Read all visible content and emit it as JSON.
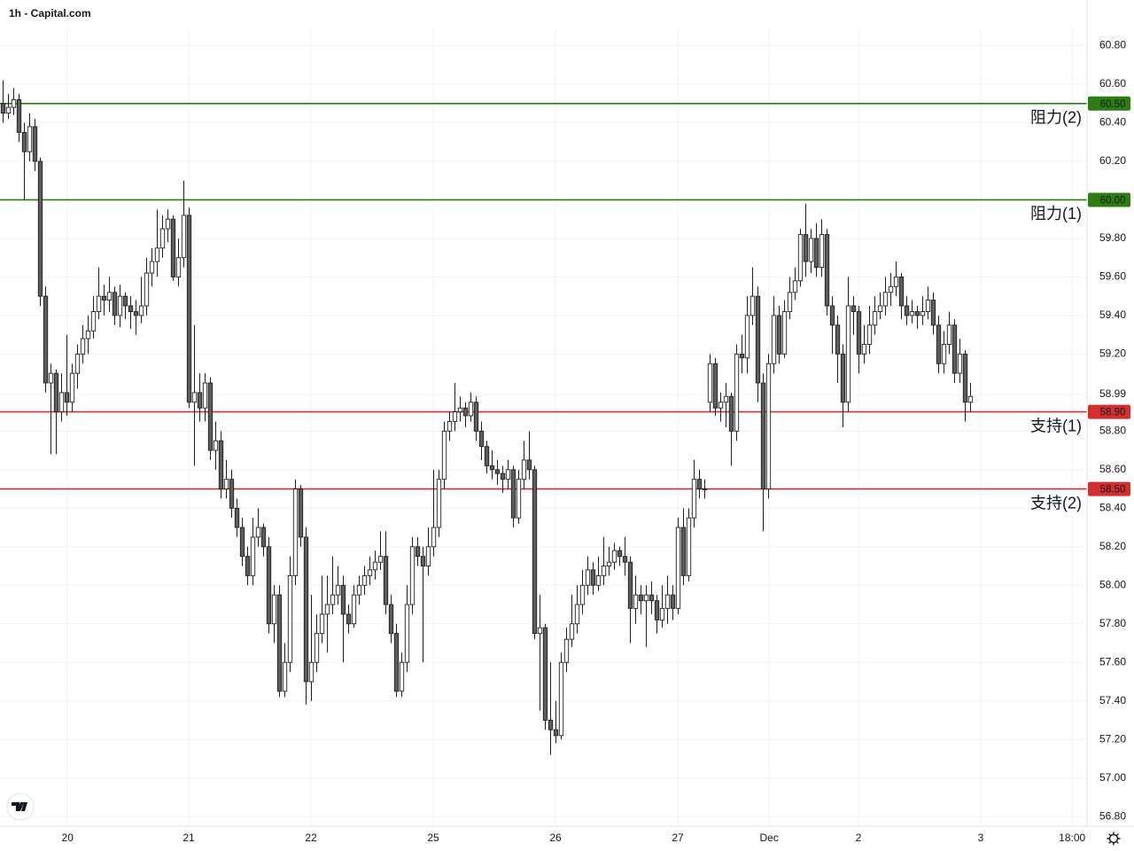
{
  "chart_data": {
    "type": "candlestick",
    "title": "1h - Capital.com",
    "up_color": "#ffffff",
    "down_color": "#5d5d5d",
    "wick_color": "#1e1e1e",
    "grid": true,
    "ylim": [
      56.75,
      60.89
    ],
    "yticks": [
      {
        "value": 60.8,
        "label": "60.80"
      },
      {
        "value": 60.6,
        "label": "60.60"
      },
      {
        "value": 60.4,
        "label": "60.40"
      },
      {
        "value": 60.2,
        "label": "60.20"
      },
      {
        "value": 59.8,
        "label": "59.80"
      },
      {
        "value": 59.6,
        "label": "59.60"
      },
      {
        "value": 59.4,
        "label": "59.40"
      },
      {
        "value": 59.2,
        "label": "59.20"
      },
      58.99,
      {
        "value": 58.8,
        "label": "58.80"
      },
      {
        "value": 58.6,
        "label": "58.60"
      },
      {
        "value": 58.4,
        "label": "58.40"
      },
      {
        "value": 58.2,
        "label": "58.20"
      },
      {
        "value": 58.0,
        "label": "58.00"
      },
      {
        "value": 57.8,
        "label": "57.80"
      },
      {
        "value": 57.6,
        "label": "57.60"
      },
      {
        "value": 57.4,
        "label": "57.40"
      },
      {
        "value": 57.2,
        "label": "57.20"
      },
      {
        "value": 57.0,
        "label": "57.00"
      },
      {
        "value": 56.8,
        "label": "56.80"
      }
    ],
    "xlim": [
      -0.5,
      204
    ],
    "xticks": [
      {
        "value": 12.2,
        "label": "20"
      },
      {
        "value": 35,
        "label": "21"
      },
      {
        "value": 58,
        "label": "22"
      },
      {
        "value": 81,
        "label": "25"
      },
      {
        "value": 104,
        "label": "26"
      },
      {
        "value": 127,
        "label": "27"
      },
      {
        "value": 144.2,
        "label": "Dec"
      },
      {
        "value": 161,
        "label": "2"
      },
      {
        "value": 184,
        "label": "3"
      },
      {
        "value": 201.2,
        "label": "18:00"
      }
    ],
    "levels": [
      {
        "value": 60.5,
        "value_label": "60.50",
        "label": "阻力(2)",
        "color": "#2e7d12"
      },
      {
        "value": 60.0,
        "value_label": "60.00",
        "label": "阻力(1)",
        "color": "#2e7d12"
      },
      {
        "value": 58.9,
        "value_label": "58.90",
        "label": "支持(1)",
        "color": "#d32f2f"
      },
      {
        "value": 58.5,
        "value_label": "58.50",
        "label": "支持(2)",
        "color": "#d32f2f"
      }
    ],
    "ohlc": [
      [
        60.5,
        60.62,
        60.4,
        60.45
      ],
      [
        60.45,
        60.55,
        60.42,
        60.48
      ],
      [
        60.48,
        60.58,
        60.44,
        60.52
      ],
      [
        60.52,
        60.55,
        60.3,
        60.35
      ],
      [
        60.35,
        60.4,
        60.0,
        60.25
      ],
      [
        60.25,
        60.45,
        60.2,
        60.38
      ],
      [
        60.38,
        60.42,
        60.15,
        60.2
      ],
      [
        60.2,
        60.22,
        59.45,
        59.5
      ],
      [
        59.5,
        59.55,
        59.0,
        59.05
      ],
      [
        59.05,
        59.15,
        58.68,
        59.1
      ],
      [
        59.1,
        59.12,
        58.68,
        58.9
      ],
      [
        58.9,
        59.1,
        58.85,
        59.0
      ],
      [
        59.0,
        59.3,
        58.88,
        58.95
      ],
      [
        58.95,
        59.15,
        58.9,
        59.1
      ],
      [
        59.1,
        59.25,
        59.02,
        59.2
      ],
      [
        59.2,
        59.35,
        59.15,
        59.28
      ],
      [
        59.28,
        59.4,
        59.2,
        59.32
      ],
      [
        59.32,
        59.5,
        59.28,
        59.42
      ],
      [
        59.42,
        59.65,
        59.38,
        59.5
      ],
      [
        59.5,
        59.56,
        59.4,
        59.48
      ],
      [
        59.48,
        59.6,
        59.42,
        59.52
      ],
      [
        59.52,
        59.55,
        59.35,
        59.4
      ],
      [
        59.4,
        59.56,
        59.34,
        59.5
      ],
      [
        59.5,
        59.52,
        59.38,
        59.45
      ],
      [
        59.45,
        59.5,
        59.33,
        59.42
      ],
      [
        59.42,
        59.48,
        59.3,
        59.4
      ],
      [
        59.4,
        59.6,
        59.36,
        59.45
      ],
      [
        59.45,
        59.7,
        59.4,
        59.62
      ],
      [
        59.62,
        59.75,
        59.55,
        59.68
      ],
      [
        59.68,
        59.95,
        59.6,
        59.75
      ],
      [
        59.75,
        59.92,
        59.7,
        59.85
      ],
      [
        59.85,
        59.95,
        59.78,
        59.9
      ],
      [
        59.9,
        59.92,
        59.58,
        59.6
      ],
      [
        59.6,
        59.8,
        59.55,
        59.7
      ],
      [
        59.7,
        60.1,
        59.65,
        59.92
      ],
      [
        59.92,
        59.96,
        58.92,
        58.95
      ],
      [
        58.95,
        59.35,
        58.62,
        59.0
      ],
      [
        59.0,
        59.1,
        58.85,
        58.92
      ],
      [
        58.92,
        59.1,
        58.85,
        59.05
      ],
      [
        59.05,
        59.08,
        58.65,
        58.7
      ],
      [
        58.7,
        58.85,
        58.6,
        58.75
      ],
      [
        58.75,
        58.8,
        58.45,
        58.5
      ],
      [
        58.5,
        58.65,
        58.45,
        58.55
      ],
      [
        58.55,
        58.6,
        58.35,
        58.4
      ],
      [
        58.4,
        58.45,
        58.25,
        58.3
      ],
      [
        58.3,
        58.35,
        58.1,
        58.15
      ],
      [
        58.15,
        58.2,
        58.0,
        58.05
      ],
      [
        58.05,
        58.35,
        58.0,
        58.25
      ],
      [
        58.25,
        58.4,
        58.2,
        58.3
      ],
      [
        58.3,
        58.32,
        58.15,
        58.2
      ],
      [
        58.2,
        58.25,
        57.75,
        57.8
      ],
      [
        57.8,
        58.0,
        57.7,
        57.95
      ],
      [
        57.95,
        58.0,
        57.42,
        57.45
      ],
      [
        57.45,
        57.7,
        57.42,
        57.6
      ],
      [
        57.6,
        58.15,
        57.55,
        58.05
      ],
      [
        58.05,
        58.55,
        58.0,
        58.5
      ],
      [
        58.5,
        58.52,
        58.2,
        58.25
      ],
      [
        58.25,
        58.3,
        57.38,
        57.5
      ],
      [
        57.5,
        57.95,
        57.4,
        57.6
      ],
      [
        57.6,
        57.85,
        57.55,
        57.75
      ],
      [
        57.75,
        58.05,
        57.7,
        57.85
      ],
      [
        57.85,
        58.05,
        57.65,
        57.9
      ],
      [
        57.9,
        58.15,
        57.85,
        57.95
      ],
      [
        57.95,
        58.1,
        57.9,
        58.0
      ],
      [
        58.0,
        58.05,
        57.6,
        57.85
      ],
      [
        57.85,
        57.9,
        57.75,
        57.8
      ],
      [
        57.8,
        58.0,
        57.78,
        57.95
      ],
      [
        57.95,
        58.05,
        57.9,
        58.0
      ],
      [
        58.0,
        58.1,
        57.95,
        58.05
      ],
      [
        58.05,
        58.15,
        58.0,
        58.08
      ],
      [
        58.08,
        58.18,
        58.03,
        58.12
      ],
      [
        58.12,
        58.28,
        58.08,
        58.15
      ],
      [
        58.15,
        58.28,
        57.85,
        57.9
      ],
      [
        57.9,
        57.95,
        57.7,
        57.75
      ],
      [
        57.75,
        57.8,
        57.42,
        57.45
      ],
      [
        57.45,
        57.65,
        57.42,
        57.6
      ],
      [
        57.6,
        58.0,
        57.55,
        57.9
      ],
      [
        57.9,
        58.25,
        57.85,
        58.2
      ],
      [
        58.2,
        58.25,
        58.1,
        58.15
      ],
      [
        58.15,
        58.2,
        57.6,
        58.1
      ],
      [
        58.1,
        58.3,
        58.05,
        58.2
      ],
      [
        58.2,
        58.6,
        58.15,
        58.3
      ],
      [
        58.3,
        58.6,
        58.25,
        58.55
      ],
      [
        58.55,
        58.85,
        58.5,
        58.8
      ],
      [
        58.8,
        58.9,
        58.75,
        58.85
      ],
      [
        58.85,
        59.05,
        58.8,
        58.9
      ],
      [
        58.9,
        58.98,
        58.85,
        58.92
      ],
      [
        58.92,
        58.95,
        58.82,
        58.88
      ],
      [
        58.88,
        59.0,
        58.85,
        58.95
      ],
      [
        58.95,
        58.98,
        58.75,
        58.8
      ],
      [
        58.8,
        58.85,
        58.65,
        58.72
      ],
      [
        58.72,
        58.75,
        58.58,
        58.62
      ],
      [
        58.62,
        58.7,
        58.55,
        58.6
      ],
      [
        58.6,
        58.65,
        58.52,
        58.58
      ],
      [
        58.58,
        58.62,
        58.48,
        58.55
      ],
      [
        58.55,
        58.65,
        58.5,
        58.6
      ],
      [
        58.6,
        58.62,
        58.3,
        58.35
      ],
      [
        58.35,
        58.6,
        58.32,
        58.55
      ],
      [
        58.55,
        58.75,
        58.5,
        58.65
      ],
      [
        58.65,
        58.8,
        58.55,
        58.6
      ],
      [
        58.6,
        58.62,
        57.72,
        57.75
      ],
      [
        57.75,
        57.95,
        57.35,
        57.78
      ],
      [
        57.78,
        57.8,
        57.25,
        57.3
      ],
      [
        57.3,
        57.6,
        57.12,
        57.25
      ],
      [
        57.25,
        57.4,
        57.18,
        57.22
      ],
      [
        57.22,
        57.65,
        57.2,
        57.6
      ],
      [
        57.6,
        57.78,
        57.55,
        57.72
      ],
      [
        57.72,
        57.95,
        57.68,
        57.8
      ],
      [
        57.8,
        58.0,
        57.75,
        57.9
      ],
      [
        57.9,
        58.08,
        57.85,
        58.0
      ],
      [
        58.0,
        58.15,
        57.95,
        58.08
      ],
      [
        58.08,
        58.12,
        57.95,
        58.0
      ],
      [
        58.0,
        58.15,
        57.97,
        58.05
      ],
      [
        58.05,
        58.25,
        58.0,
        58.1
      ],
      [
        58.1,
        58.2,
        58.05,
        58.12
      ],
      [
        58.12,
        58.22,
        58.08,
        58.18
      ],
      [
        58.18,
        58.2,
        58.1,
        58.15
      ],
      [
        58.15,
        58.25,
        58.05,
        58.12
      ],
      [
        58.12,
        58.15,
        57.7,
        57.88
      ],
      [
        57.88,
        58.05,
        57.8,
        57.95
      ],
      [
        57.95,
        58.0,
        57.85,
        57.92
      ],
      [
        57.92,
        58.0,
        57.68,
        57.95
      ],
      [
        57.95,
        58.02,
        57.85,
        57.92
      ],
      [
        57.92,
        57.95,
        57.75,
        57.82
      ],
      [
        57.82,
        58.0,
        57.78,
        57.88
      ],
      [
        57.88,
        58.05,
        57.8,
        57.95
      ],
      [
        57.95,
        58.0,
        57.82,
        57.88
      ],
      [
        57.88,
        58.35,
        57.85,
        58.3
      ],
      [
        58.3,
        58.4,
        58.0,
        58.05
      ],
      [
        58.05,
        58.4,
        58.02,
        58.35
      ],
      [
        58.35,
        58.65,
        58.3,
        58.55
      ],
      [
        58.55,
        58.6,
        58.45,
        58.5
      ],
      [
        58.5,
        58.55,
        58.45,
        58.5
      ],
      [
        58.95,
        59.2,
        58.9,
        59.15
      ],
      [
        59.15,
        59.18,
        58.88,
        58.92
      ],
      [
        58.92,
        59.0,
        58.85,
        58.95
      ],
      [
        58.95,
        59.05,
        58.82,
        58.98
      ],
      [
        58.98,
        59.0,
        58.62,
        58.8
      ],
      [
        58.8,
        59.25,
        58.75,
        59.2
      ],
      [
        59.2,
        59.3,
        59.1,
        59.18
      ],
      [
        59.18,
        59.5,
        59.1,
        59.4
      ],
      [
        59.4,
        59.65,
        59.35,
        59.5
      ],
      [
        59.5,
        59.55,
        58.95,
        59.05
      ],
      [
        59.05,
        59.1,
        58.28,
        58.5
      ],
      [
        58.5,
        59.2,
        58.45,
        59.15
      ],
      [
        59.15,
        59.5,
        59.1,
        59.4
      ],
      [
        59.4,
        59.45,
        59.15,
        59.2
      ],
      [
        59.2,
        59.48,
        59.18,
        59.42
      ],
      [
        59.42,
        59.6,
        59.38,
        59.52
      ],
      [
        59.52,
        59.65,
        59.48,
        59.58
      ],
      [
        59.58,
        59.85,
        59.55,
        59.82
      ],
      [
        59.82,
        59.98,
        59.6,
        59.68
      ],
      [
        59.68,
        59.85,
        59.62,
        59.8
      ],
      [
        59.8,
        59.88,
        59.6,
        59.65
      ],
      [
        59.65,
        59.9,
        59.6,
        59.82
      ],
      [
        59.82,
        59.85,
        59.4,
        59.45
      ],
      [
        59.45,
        59.5,
        59.2,
        59.35
      ],
      [
        59.35,
        59.4,
        59.05,
        59.2
      ],
      [
        59.2,
        59.25,
        58.82,
        58.95
      ],
      [
        58.95,
        59.6,
        58.9,
        59.45
      ],
      [
        59.45,
        59.5,
        59.3,
        59.42
      ],
      [
        59.42,
        59.45,
        59.1,
        59.2
      ],
      [
        59.2,
        59.35,
        59.15,
        59.25
      ],
      [
        59.25,
        59.45,
        59.2,
        59.35
      ],
      [
        59.35,
        59.5,
        59.3,
        59.42
      ],
      [
        59.42,
        59.52,
        59.38,
        59.45
      ],
      [
        59.45,
        59.6,
        59.4,
        59.52
      ],
      [
        59.52,
        59.62,
        59.45,
        59.55
      ],
      [
        59.55,
        59.68,
        59.5,
        59.6
      ],
      [
        59.6,
        59.62,
        59.38,
        59.45
      ],
      [
        59.45,
        59.5,
        59.35,
        59.4
      ],
      [
        59.4,
        59.48,
        59.36,
        59.42
      ],
      [
        59.42,
        59.45,
        59.33,
        59.4
      ],
      [
        59.4,
        59.5,
        59.35,
        59.42
      ],
      [
        59.42,
        59.55,
        59.38,
        59.48
      ],
      [
        59.48,
        59.52,
        59.3,
        59.35
      ],
      [
        59.35,
        59.4,
        59.1,
        59.15
      ],
      [
        59.15,
        59.32,
        59.1,
        59.25
      ],
      [
        59.25,
        59.42,
        59.2,
        59.35
      ],
      [
        59.35,
        59.38,
        59.05,
        59.1
      ],
      [
        59.1,
        59.28,
        59.05,
        59.2
      ],
      [
        59.2,
        59.22,
        58.85,
        58.95
      ],
      [
        58.95,
        59.05,
        58.9,
        58.98
      ]
    ]
  }
}
